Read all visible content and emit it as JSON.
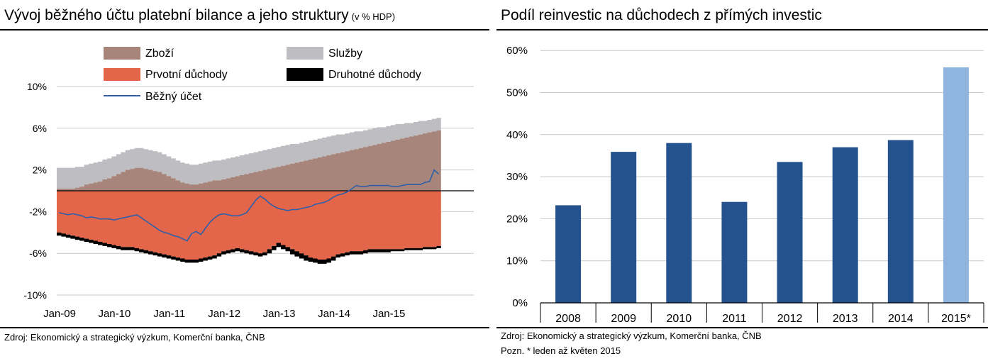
{
  "left": {
    "title": "Vývoj běžného účtu platební bilance a jeho struktury",
    "title_suffix": "(v % HDP)",
    "source": "Zdroj: Ekonomický a strategický výzkum, Komerční banka, ČNB"
  },
  "right": {
    "title": "Podíl reinvestic na důchodech z přímých investic",
    "source": "Zdroj: Ekonomický a strategický výzkum, Komerční banka, ČNB",
    "note": "Pozn. * leden až květen 2015"
  },
  "colors": {
    "goods": "#A8857A",
    "services": "#BEBEC2",
    "primary_income": "#E3664A",
    "secondary_income": "#000000",
    "current_account": "#2E5FA8",
    "bar": "#24528E",
    "bar_highlight": "#8FB5DF"
  },
  "chart_data": [
    {
      "type": "area",
      "title": "Vývoj běžného účtu platební bilance a jeho struktury",
      "unit": "v % HDP",
      "x_tick_labels": [
        "Jan-09",
        "Jan-10",
        "Jan-11",
        "Jan-12",
        "Jan-13",
        "Jan-14",
        "Jan-15"
      ],
      "y_tick_labels": [
        "10%",
        "6%",
        "2%",
        "-2%",
        "-6%",
        "-10%"
      ],
      "ylim": [
        -10,
        10
      ],
      "legend": [
        "Zboží",
        "Služby",
        "Prvotní důchody",
        "Druhotné důchody",
        "Běžný účet"
      ],
      "legend_position": "top",
      "x_start": "2009-01",
      "frequency": "monthly",
      "series": [
        {
          "name": "Zboží",
          "type": "area",
          "values": [
            0.2,
            0.2,
            0.2,
            0.2,
            0.3,
            0.4,
            0.6,
            0.7,
            0.8,
            0.9,
            1.1,
            1.2,
            1.4,
            1.6,
            1.8,
            2.0,
            2.1,
            2.2,
            2.2,
            2.1,
            2.0,
            1.9,
            1.8,
            1.6,
            1.4,
            1.2,
            1.0,
            0.8,
            0.7,
            0.6,
            0.6,
            0.7,
            0.8,
            0.9,
            1.0,
            1.0,
            1.1,
            1.2,
            1.3,
            1.4,
            1.5,
            1.6,
            1.7,
            1.8,
            1.9,
            2.0,
            2.1,
            2.2,
            2.3,
            2.4,
            2.5,
            2.6,
            2.7,
            2.8,
            2.9,
            3.0,
            3.1,
            3.2,
            3.3,
            3.4,
            3.5,
            3.6,
            3.7,
            3.8,
            3.9,
            4.0,
            4.1,
            4.2,
            4.3,
            4.4,
            4.5,
            4.6,
            4.7,
            4.8,
            4.9,
            5.0,
            5.1,
            5.2,
            5.3,
            5.4,
            5.5,
            5.6,
            5.7,
            5.8
          ]
        },
        {
          "name": "Služby",
          "type": "area",
          "values": [
            2.0,
            2.0,
            2.0,
            2.0,
            2.0,
            1.9,
            1.9,
            1.9,
            1.9,
            1.9,
            1.9,
            1.9,
            1.9,
            1.9,
            1.9,
            1.9,
            1.9,
            1.9,
            1.9,
            1.9,
            1.9,
            1.9,
            1.9,
            1.9,
            1.9,
            1.9,
            1.9,
            1.9,
            1.9,
            1.9,
            1.9,
            1.9,
            1.9,
            1.9,
            1.9,
            1.9,
            1.9,
            1.9,
            1.9,
            1.9,
            1.9,
            1.9,
            1.9,
            1.9,
            1.9,
            1.9,
            1.9,
            1.9,
            1.9,
            1.9,
            1.9,
            1.9,
            1.8,
            1.8,
            1.8,
            1.8,
            1.8,
            1.8,
            1.8,
            1.8,
            1.8,
            1.8,
            1.7,
            1.7,
            1.7,
            1.7,
            1.6,
            1.6,
            1.6,
            1.6,
            1.6,
            1.5,
            1.5,
            1.5,
            1.5,
            1.4,
            1.4,
            1.3,
            1.3,
            1.3,
            1.2,
            1.2,
            1.2,
            1.2
          ]
        },
        {
          "name": "Prvotní důchody",
          "type": "area",
          "values": [
            -4.0,
            -4.1,
            -4.2,
            -4.3,
            -4.4,
            -4.5,
            -4.6,
            -4.7,
            -4.8,
            -4.9,
            -5.0,
            -5.1,
            -5.2,
            -5.3,
            -5.4,
            -5.4,
            -5.4,
            -5.5,
            -5.6,
            -5.7,
            -5.8,
            -5.9,
            -6.0,
            -6.1,
            -6.2,
            -6.3,
            -6.4,
            -6.5,
            -6.6,
            -6.6,
            -6.6,
            -6.5,
            -6.4,
            -6.3,
            -6.2,
            -6.0,
            -5.8,
            -5.7,
            -5.6,
            -5.5,
            -5.6,
            -5.7,
            -5.8,
            -5.9,
            -6.0,
            -5.9,
            -5.6,
            -5.3,
            -5.0,
            -5.2,
            -5.4,
            -5.6,
            -5.8,
            -6.0,
            -6.2,
            -6.4,
            -6.5,
            -6.6,
            -6.6,
            -6.5,
            -6.3,
            -6.1,
            -6.0,
            -5.9,
            -5.8,
            -5.8,
            -5.8,
            -5.7,
            -5.6,
            -5.6,
            -5.6,
            -5.6,
            -5.6,
            -5.6,
            -5.6,
            -5.6,
            -5.5,
            -5.5,
            -5.5,
            -5.5,
            -5.4,
            -5.4,
            -5.4,
            -5.3
          ]
        },
        {
          "name": "Druhotné důchody",
          "type": "area",
          "values": [
            -0.3,
            -0.3,
            -0.3,
            -0.3,
            -0.3,
            -0.3,
            -0.3,
            -0.3,
            -0.3,
            -0.3,
            -0.3,
            -0.3,
            -0.3,
            -0.3,
            -0.3,
            -0.3,
            -0.3,
            -0.3,
            -0.3,
            -0.3,
            -0.3,
            -0.3,
            -0.3,
            -0.3,
            -0.3,
            -0.3,
            -0.3,
            -0.3,
            -0.3,
            -0.3,
            -0.3,
            -0.3,
            -0.3,
            -0.3,
            -0.3,
            -0.3,
            -0.3,
            -0.3,
            -0.3,
            -0.3,
            -0.3,
            -0.3,
            -0.3,
            -0.3,
            -0.3,
            -0.3,
            -0.4,
            -0.4,
            -0.4,
            -0.4,
            -0.4,
            -0.5,
            -0.5,
            -0.5,
            -0.5,
            -0.4,
            -0.4,
            -0.4,
            -0.4,
            -0.4,
            -0.4,
            -0.3,
            -0.3,
            -0.3,
            -0.3,
            -0.3,
            -0.3,
            -0.3,
            -0.3,
            -0.3,
            -0.3,
            -0.3,
            -0.3,
            -0.2,
            -0.2,
            -0.2,
            -0.2,
            -0.2,
            -0.2,
            -0.2,
            -0.2,
            -0.2,
            -0.2,
            -0.2
          ]
        },
        {
          "name": "Běžný účet",
          "type": "line",
          "values": [
            -2.1,
            -2.2,
            -2.3,
            -2.2,
            -2.3,
            -2.4,
            -2.6,
            -2.5,
            -2.6,
            -2.7,
            -2.7,
            -2.7,
            -2.8,
            -2.7,
            -2.6,
            -2.5,
            -2.4,
            -2.3,
            -2.6,
            -2.9,
            -3.2,
            -3.5,
            -3.8,
            -4.0,
            -4.1,
            -4.3,
            -4.4,
            -4.6,
            -4.8,
            -4.1,
            -3.9,
            -4.2,
            -3.6,
            -3.0,
            -2.6,
            -2.3,
            -2.2,
            -2.3,
            -2.4,
            -2.4,
            -2.3,
            -2.1,
            -1.5,
            -0.9,
            -0.5,
            -0.8,
            -1.2,
            -1.5,
            -1.7,
            -1.8,
            -1.9,
            -1.8,
            -1.8,
            -1.7,
            -1.6,
            -1.5,
            -1.3,
            -1.2,
            -1.1,
            -0.9,
            -0.6,
            -0.4,
            -0.3,
            -0.1,
            0.2,
            0.5,
            0.4,
            0.4,
            0.5,
            0.5,
            0.5,
            0.5,
            0.5,
            0.4,
            0.4,
            0.5,
            0.6,
            0.6,
            0.6,
            0.6,
            0.8,
            0.9,
            2.0,
            1.6
          ]
        }
      ]
    },
    {
      "type": "bar",
      "title": "Podíl reinvestic na důchodech z přímých investic",
      "categories": [
        "2008",
        "2009",
        "2010",
        "2011",
        "2012",
        "2013",
        "2014",
        "2015*"
      ],
      "values": [
        23.2,
        35.9,
        38.0,
        24.0,
        33.5,
        37.0,
        38.7,
        56.0
      ],
      "y_tick_labels": [
        "60%",
        "50%",
        "40%",
        "30%",
        "20%",
        "10%",
        "0%"
      ],
      "ylim": [
        0,
        60
      ],
      "grid": true
    }
  ]
}
